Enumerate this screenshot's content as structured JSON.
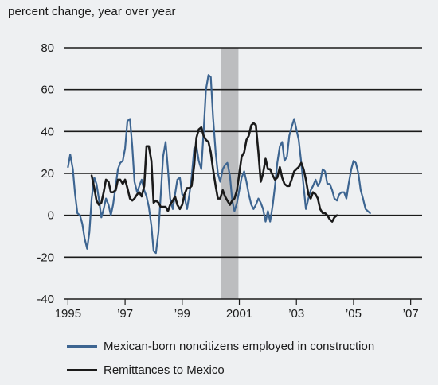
{
  "chart_data": {
    "type": "line",
    "ylabel": "percent change, year over year",
    "ylim": [
      -40,
      80
    ],
    "yticks": [
      -40,
      -20,
      0,
      20,
      40,
      60,
      80
    ],
    "xlim": [
      1994.85,
      2007.4
    ],
    "xticks": [
      {
        "value": 1995,
        "label": "1995"
      },
      {
        "value": 1997,
        "label": "’97"
      },
      {
        "value": 1999,
        "label": "’99"
      },
      {
        "value": 2001,
        "label": "2001"
      },
      {
        "value": 2003,
        "label": "’03"
      },
      {
        "value": 2005,
        "label": "’05"
      },
      {
        "value": 2007,
        "label": "’07"
      }
    ],
    "grid": true,
    "recession": {
      "start": 2000.35,
      "end": 2000.97
    },
    "legend_position": "bottom",
    "series": [
      {
        "name": "Mexican-born noncitizens employed in construction",
        "color": "#3d6591",
        "points": [
          [
            1995.0,
            23
          ],
          [
            1995.08,
            29
          ],
          [
            1995.17,
            22
          ],
          [
            1995.25,
            10
          ],
          [
            1995.33,
            1
          ],
          [
            1995.42,
            0
          ],
          [
            1995.5,
            -4
          ],
          [
            1995.58,
            -11
          ],
          [
            1995.67,
            -16
          ],
          [
            1995.75,
            -8
          ],
          [
            1995.83,
            8
          ],
          [
            1995.92,
            18
          ],
          [
            1996.0,
            15
          ],
          [
            1996.08,
            8
          ],
          [
            1996.17,
            -1
          ],
          [
            1996.25,
            3
          ],
          [
            1996.33,
            8
          ],
          [
            1996.42,
            5
          ],
          [
            1996.5,
            0
          ],
          [
            1996.58,
            5
          ],
          [
            1996.67,
            14
          ],
          [
            1996.75,
            22
          ],
          [
            1996.83,
            25
          ],
          [
            1996.92,
            26
          ],
          [
            1997.0,
            32
          ],
          [
            1997.08,
            45
          ],
          [
            1997.17,
            46
          ],
          [
            1997.25,
            33
          ],
          [
            1997.33,
            16
          ],
          [
            1997.42,
            11
          ],
          [
            1997.5,
            14
          ],
          [
            1997.58,
            17
          ],
          [
            1997.67,
            12
          ],
          [
            1997.75,
            9
          ],
          [
            1997.83,
            4
          ],
          [
            1997.92,
            -5
          ],
          [
            1998.0,
            -17
          ],
          [
            1998.08,
            -18
          ],
          [
            1998.17,
            -8
          ],
          [
            1998.25,
            10
          ],
          [
            1998.33,
            28
          ],
          [
            1998.42,
            35
          ],
          [
            1998.5,
            22
          ],
          [
            1998.58,
            8
          ],
          [
            1998.67,
            3
          ],
          [
            1998.75,
            10
          ],
          [
            1998.83,
            17
          ],
          [
            1998.92,
            18
          ],
          [
            1999.0,
            10
          ],
          [
            1999.08,
            9
          ],
          [
            1999.17,
            3
          ],
          [
            1999.25,
            10
          ],
          [
            1999.33,
            18
          ],
          [
            1999.42,
            32
          ],
          [
            1999.5,
            33
          ],
          [
            1999.58,
            26
          ],
          [
            1999.67,
            22
          ],
          [
            1999.75,
            40
          ],
          [
            1999.83,
            60
          ],
          [
            1999.92,
            67
          ],
          [
            2000.0,
            66
          ],
          [
            2000.08,
            47
          ],
          [
            2000.17,
            30
          ],
          [
            2000.25,
            20
          ],
          [
            2000.33,
            16
          ],
          [
            2000.42,
            22
          ],
          [
            2000.5,
            24
          ],
          [
            2000.58,
            25
          ],
          [
            2000.67,
            19
          ],
          [
            2000.75,
            7
          ],
          [
            2000.83,
            2
          ],
          [
            2000.92,
            6
          ],
          [
            2001.0,
            12
          ],
          [
            2001.08,
            18
          ],
          [
            2001.17,
            21
          ],
          [
            2001.25,
            16
          ],
          [
            2001.33,
            10
          ],
          [
            2001.42,
            5
          ],
          [
            2001.5,
            3
          ],
          [
            2001.58,
            5
          ],
          [
            2001.67,
            8
          ],
          [
            2001.75,
            6
          ],
          [
            2001.83,
            3
          ],
          [
            2001.92,
            -3
          ],
          [
            2002.0,
            2
          ],
          [
            2002.08,
            -3
          ],
          [
            2002.17,
            5
          ],
          [
            2002.25,
            14
          ],
          [
            2002.33,
            25
          ],
          [
            2002.42,
            33
          ],
          [
            2002.5,
            35
          ],
          [
            2002.58,
            26
          ],
          [
            2002.67,
            28
          ],
          [
            2002.75,
            38
          ],
          [
            2002.83,
            42
          ],
          [
            2002.92,
            46
          ],
          [
            2003.0,
            41
          ],
          [
            2003.08,
            36
          ],
          [
            2003.17,
            25
          ],
          [
            2003.25,
            14
          ],
          [
            2003.33,
            3
          ],
          [
            2003.42,
            8
          ],
          [
            2003.5,
            12
          ],
          [
            2003.58,
            14
          ],
          [
            2003.67,
            17
          ],
          [
            2003.75,
            14
          ],
          [
            2003.83,
            16
          ],
          [
            2003.92,
            22
          ],
          [
            2004.0,
            21
          ],
          [
            2004.08,
            15
          ],
          [
            2004.17,
            15
          ],
          [
            2004.25,
            12
          ],
          [
            2004.33,
            8
          ],
          [
            2004.42,
            7
          ],
          [
            2004.5,
            10
          ],
          [
            2004.58,
            11
          ],
          [
            2004.67,
            11
          ],
          [
            2004.75,
            8
          ],
          [
            2004.83,
            15
          ],
          [
            2004.92,
            22
          ],
          [
            2005.0,
            26
          ],
          [
            2005.08,
            25
          ],
          [
            2005.17,
            20
          ],
          [
            2005.25,
            12
          ],
          [
            2005.33,
            8
          ],
          [
            2005.42,
            3
          ],
          [
            2005.5,
            2
          ],
          [
            2005.58,
            1
          ]
        ]
      },
      {
        "name": "Remittances to Mexico",
        "color": "#1a1a1a",
        "points": [
          [
            1995.83,
            19
          ],
          [
            1995.92,
            13
          ],
          [
            1996.0,
            7
          ],
          [
            1996.08,
            5
          ],
          [
            1996.17,
            6
          ],
          [
            1996.25,
            11
          ],
          [
            1996.33,
            17
          ],
          [
            1996.42,
            16
          ],
          [
            1996.5,
            11
          ],
          [
            1996.58,
            11
          ],
          [
            1996.67,
            12
          ],
          [
            1996.75,
            17
          ],
          [
            1996.83,
            17
          ],
          [
            1996.92,
            15
          ],
          [
            1997.0,
            17
          ],
          [
            1997.08,
            13
          ],
          [
            1997.17,
            8
          ],
          [
            1997.25,
            7
          ],
          [
            1997.33,
            8
          ],
          [
            1997.42,
            10
          ],
          [
            1997.5,
            11
          ],
          [
            1997.58,
            9
          ],
          [
            1997.67,
            14
          ],
          [
            1997.75,
            33
          ],
          [
            1997.83,
            33
          ],
          [
            1997.92,
            26
          ],
          [
            1998.0,
            6
          ],
          [
            1998.08,
            7
          ],
          [
            1998.17,
            6
          ],
          [
            1998.25,
            4
          ],
          [
            1998.33,
            4
          ],
          [
            1998.42,
            4
          ],
          [
            1998.5,
            2
          ],
          [
            1998.58,
            5
          ],
          [
            1998.67,
            7
          ],
          [
            1998.75,
            9
          ],
          [
            1998.83,
            5
          ],
          [
            1998.92,
            3
          ],
          [
            1999.0,
            5
          ],
          [
            1999.08,
            10
          ],
          [
            1999.17,
            13
          ],
          [
            1999.25,
            13
          ],
          [
            1999.33,
            14
          ],
          [
            1999.42,
            24
          ],
          [
            1999.5,
            37
          ],
          [
            1999.58,
            41
          ],
          [
            1999.67,
            42
          ],
          [
            1999.75,
            38
          ],
          [
            1999.83,
            36
          ],
          [
            1999.92,
            35
          ],
          [
            2000.0,
            30
          ],
          [
            2000.08,
            22
          ],
          [
            2000.17,
            14
          ],
          [
            2000.25,
            8
          ],
          [
            2000.33,
            8
          ],
          [
            2000.42,
            12
          ],
          [
            2000.5,
            9
          ],
          [
            2000.58,
            7
          ],
          [
            2000.67,
            5
          ],
          [
            2000.75,
            7
          ],
          [
            2000.83,
            8
          ],
          [
            2000.92,
            12
          ],
          [
            2001.0,
            20
          ],
          [
            2001.08,
            28
          ],
          [
            2001.17,
            30
          ],
          [
            2001.25,
            36
          ],
          [
            2001.33,
            38
          ],
          [
            2001.42,
            43
          ],
          [
            2001.5,
            44
          ],
          [
            2001.58,
            43
          ],
          [
            2001.67,
            30
          ],
          [
            2001.75,
            16
          ],
          [
            2001.83,
            20
          ],
          [
            2001.92,
            27
          ],
          [
            2002.0,
            22
          ],
          [
            2002.08,
            22
          ],
          [
            2002.17,
            19
          ],
          [
            2002.25,
            17
          ],
          [
            2002.33,
            18
          ],
          [
            2002.42,
            23
          ],
          [
            2002.5,
            18
          ],
          [
            2002.58,
            15
          ],
          [
            2002.67,
            14
          ],
          [
            2002.75,
            14
          ],
          [
            2002.83,
            17
          ],
          [
            2002.92,
            21
          ],
          [
            2003.0,
            22
          ],
          [
            2003.08,
            23
          ],
          [
            2003.17,
            25
          ],
          [
            2003.25,
            22
          ],
          [
            2003.33,
            17
          ],
          [
            2003.42,
            10
          ],
          [
            2003.5,
            8
          ],
          [
            2003.58,
            11
          ],
          [
            2003.67,
            10
          ],
          [
            2003.75,
            8
          ],
          [
            2003.83,
            3
          ],
          [
            2003.92,
            1
          ],
          [
            2004.0,
            1
          ],
          [
            2004.08,
            0
          ],
          [
            2004.17,
            -2
          ],
          [
            2004.25,
            -3
          ],
          [
            2004.33,
            -1
          ],
          [
            2004.42,
            0
          ]
        ]
      }
    ]
  }
}
